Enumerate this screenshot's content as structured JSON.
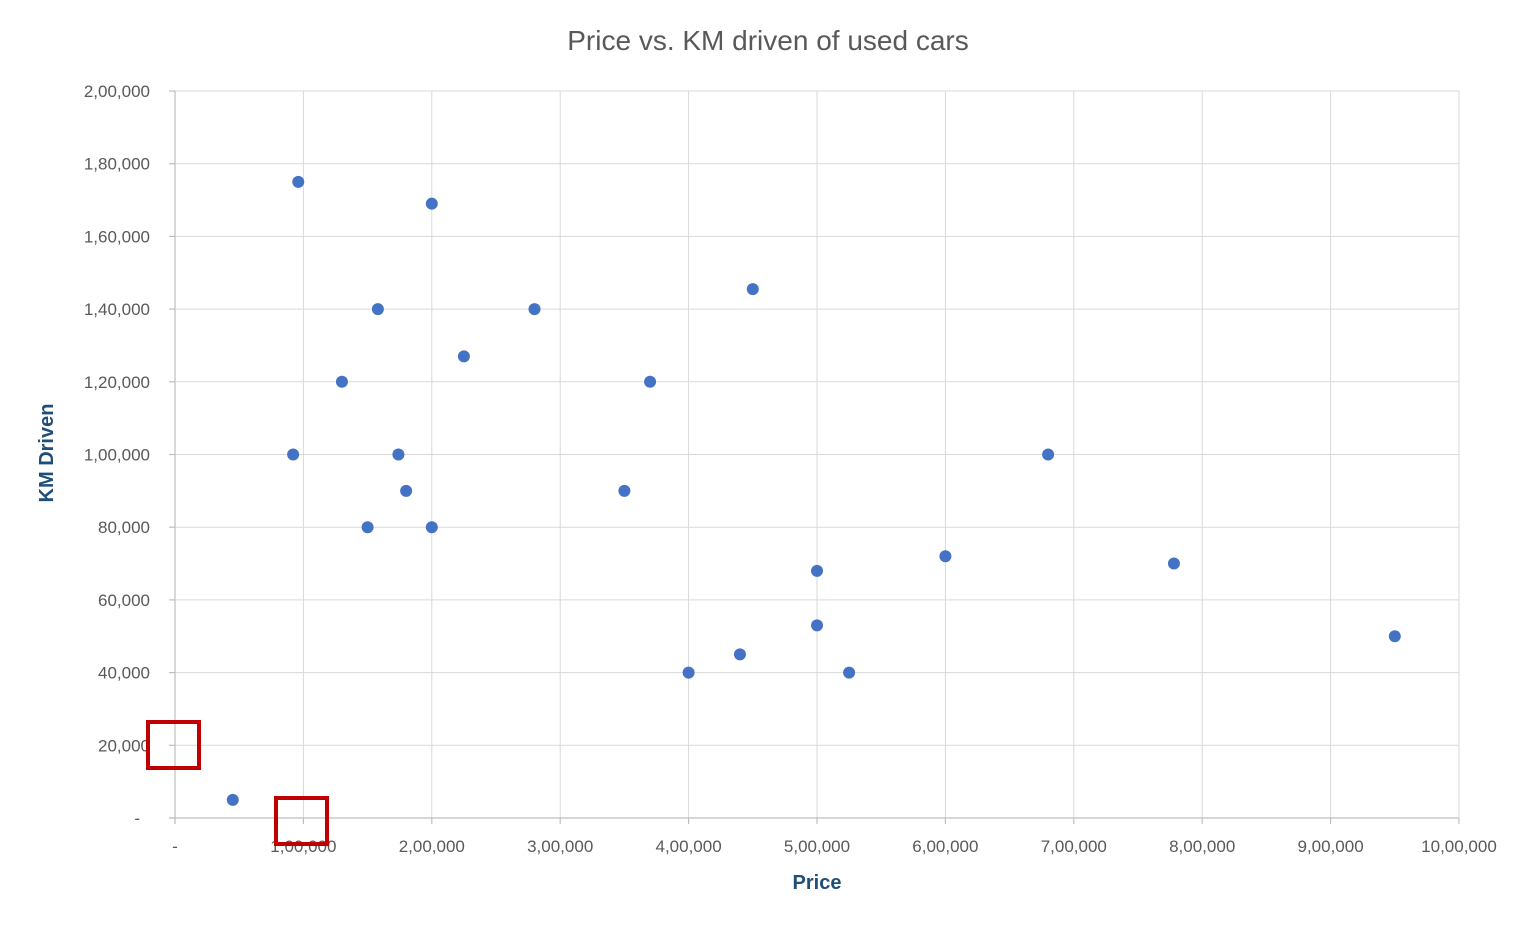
{
  "chart_data": {
    "type": "scatter",
    "title": "Price vs. KM driven of used cars",
    "xlabel": "Price",
    "ylabel": "KM Driven",
    "xlim": [
      0,
      1000000
    ],
    "ylim": [
      0,
      200000
    ],
    "x_ticks": [
      0,
      100000,
      200000,
      300000,
      400000,
      500000,
      600000,
      700000,
      800000,
      900000,
      1000000
    ],
    "x_tick_labels": [
      "-",
      "1,00,000",
      "2,00,000",
      "3,00,000",
      "4,00,000",
      "5,00,000",
      "6,00,000",
      "7,00,000",
      "8,00,000",
      "9,00,000",
      "10,00,000"
    ],
    "y_ticks": [
      0,
      20000,
      40000,
      60000,
      80000,
      100000,
      120000,
      140000,
      160000,
      180000,
      200000
    ],
    "y_tick_labels": [
      "-",
      "20,000",
      "40,000",
      "60,000",
      "80,000",
      "1,00,000",
      "1,20,000",
      "1,40,000",
      "1,60,000",
      "1,80,000",
      "2,00,000"
    ],
    "grid": true,
    "legend": "none",
    "series_color": "#4472c4",
    "highlight_color": "#c00000",
    "points": [
      {
        "x": 45000,
        "y": 5000
      },
      {
        "x": 92000,
        "y": 100000
      },
      {
        "x": 96000,
        "y": 175000
      },
      {
        "x": 130000,
        "y": 120000
      },
      {
        "x": 150000,
        "y": 80000
      },
      {
        "x": 158000,
        "y": 140000
      },
      {
        "x": 174000,
        "y": 100000
      },
      {
        "x": 180000,
        "y": 90000
      },
      {
        "x": 200000,
        "y": 169000
      },
      {
        "x": 200000,
        "y": 80000
      },
      {
        "x": 225000,
        "y": 127000
      },
      {
        "x": 280000,
        "y": 140000
      },
      {
        "x": 350000,
        "y": 90000
      },
      {
        "x": 370000,
        "y": 120000
      },
      {
        "x": 400000,
        "y": 40000
      },
      {
        "x": 440000,
        "y": 45000
      },
      {
        "x": 450000,
        "y": 145500
      },
      {
        "x": 500000,
        "y": 68000
      },
      {
        "x": 500000,
        "y": 53000
      },
      {
        "x": 525000,
        "y": 40000
      },
      {
        "x": 600000,
        "y": 72000
      },
      {
        "x": 680000,
        "y": 100000
      },
      {
        "x": 778000,
        "y": 70000
      },
      {
        "x": 950000,
        "y": 50000
      }
    ]
  }
}
